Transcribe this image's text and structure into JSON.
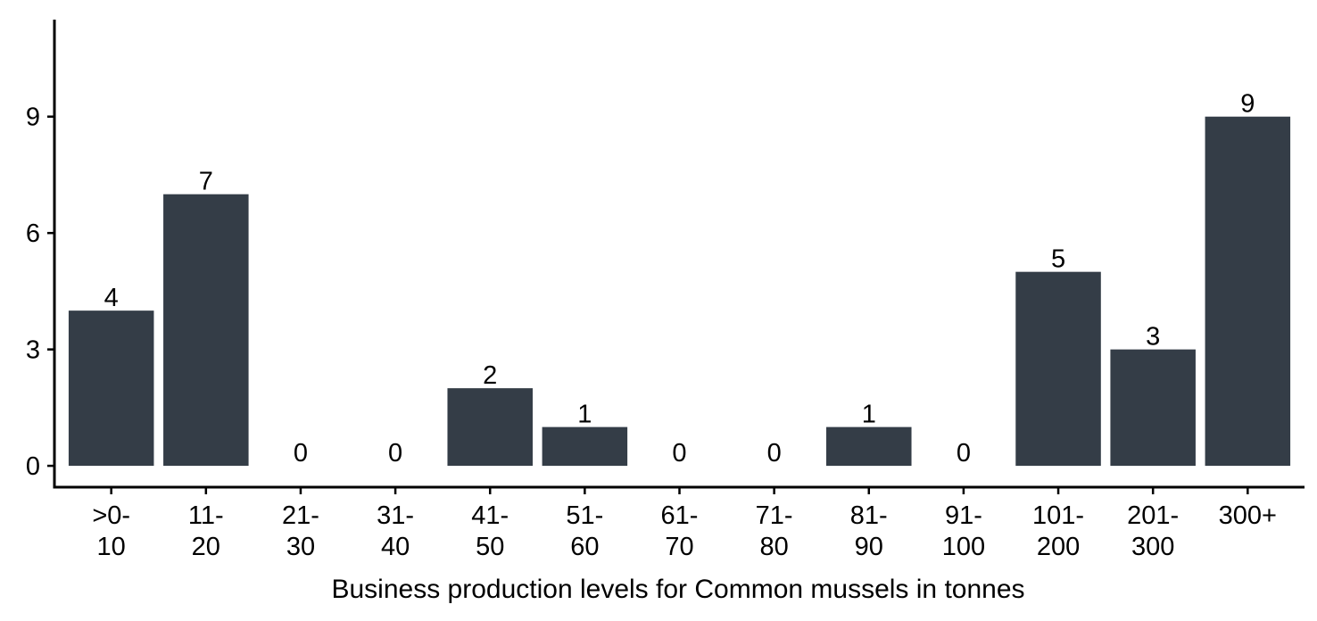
{
  "chart_data": {
    "type": "bar",
    "categories": [
      [
        "&gt;0-",
        "10"
      ],
      [
        "11-",
        "20"
      ],
      [
        "21-",
        "30"
      ],
      [
        "31-",
        "40"
      ],
      [
        "41-",
        "50"
      ],
      [
        "51-",
        "60"
      ],
      [
        "61-",
        "70"
      ],
      [
        "71-",
        "80"
      ],
      [
        "81-",
        "90"
      ],
      [
        "91-",
        "100"
      ],
      [
        "101-",
        "200"
      ],
      [
        "201-",
        "300"
      ],
      [
        "300+",
        ""
      ]
    ],
    "values": [
      4,
      7,
      0,
      0,
      2,
      1,
      0,
      0,
      1,
      0,
      5,
      3,
      9
    ],
    "data_labels": [
      "4",
      "7",
      "0",
      "0",
      "2",
      "1",
      "0",
      "0",
      "1",
      "0",
      "5",
      "3",
      "9"
    ],
    "xlabel": "Business production levels for Common mussels in tonnes",
    "ylabel": "",
    "yticks": [
      0,
      3,
      6,
      9
    ],
    "ylim": [
      -0.55,
      11.5
    ],
    "grid": false,
    "legend": "none",
    "bar_color": "#343d47",
    "axis_color": "#000000"
  }
}
